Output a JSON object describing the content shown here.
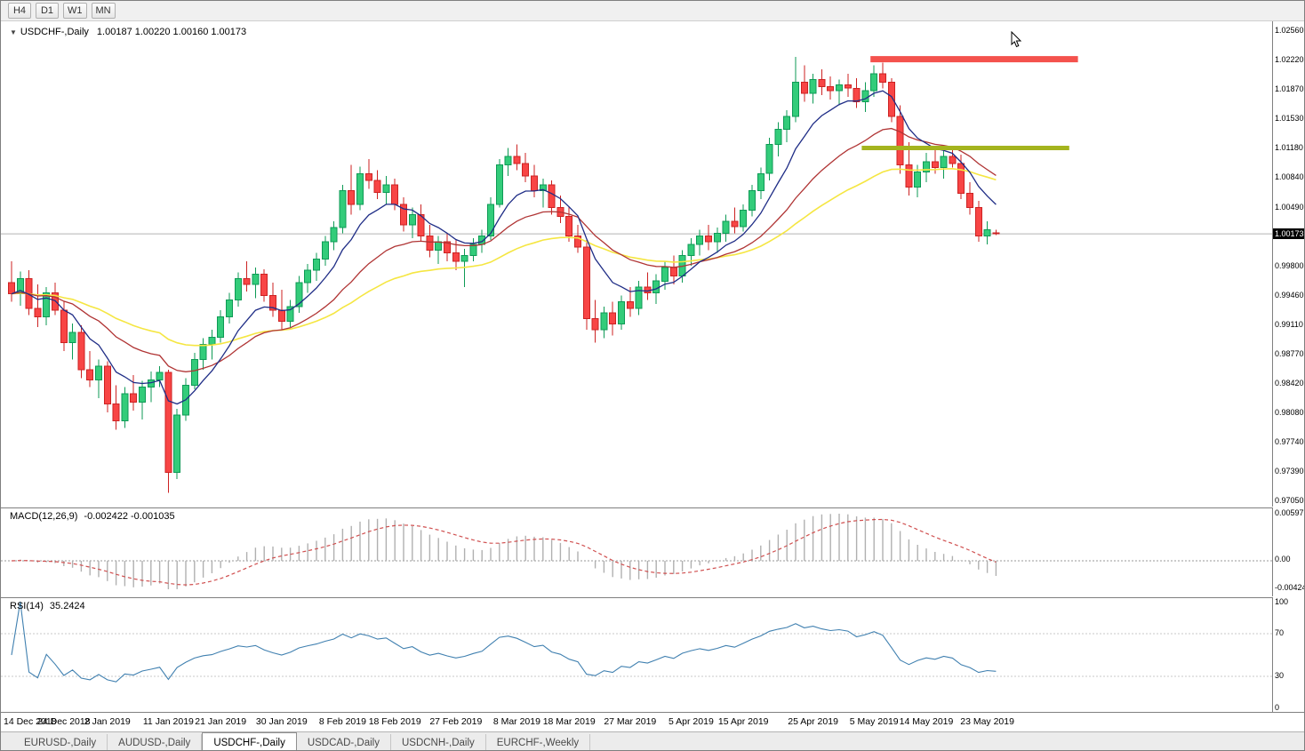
{
  "toolbar": {
    "timeframes": [
      "H4",
      "D1",
      "W1",
      "MN"
    ]
  },
  "chart_header": {
    "collapse_icon": "▼",
    "symbol": "USDCHF-,Daily",
    "ohlc": "1.00187 1.00220 1.00160 1.00173"
  },
  "price_axis": {
    "labels": [
      "1.02560",
      "1.02220",
      "1.01870",
      "1.01530",
      "1.01180",
      "1.00840",
      "1.00490",
      "0.99800",
      "0.99460",
      "0.99110",
      "0.98770",
      "0.98420",
      "0.98080",
      "0.97740",
      "0.97390",
      "0.97050"
    ],
    "current_price": "1.00173"
  },
  "macd_panel": {
    "label": "MACD(12,26,9)",
    "values": "-0.002422 -0.001035",
    "axis_labels": [
      "0.00597",
      "0.00",
      "-0.004243"
    ]
  },
  "rsi_panel": {
    "label": "RSI(14)",
    "value": "35.2424",
    "axis_labels": [
      "100",
      "70",
      "30",
      "0"
    ]
  },
  "time_axis": {
    "labels": [
      {
        "text": "14 Dec 2018",
        "index": 0
      },
      {
        "text": "24 Dec 2018",
        "index": 6
      },
      {
        "text": "2 Jan 2019",
        "index": 11
      },
      {
        "text": "11 Jan 2019",
        "index": 18
      },
      {
        "text": "21 Jan 2019",
        "index": 24
      },
      {
        "text": "30 Jan 2019",
        "index": 31
      },
      {
        "text": "8 Feb 2019",
        "index": 38
      },
      {
        "text": "18 Feb 2019",
        "index": 44
      },
      {
        "text": "27 Feb 2019",
        "index": 51
      },
      {
        "text": "8 Mar 2019",
        "index": 58
      },
      {
        "text": "18 Mar 2019",
        "index": 64
      },
      {
        "text": "27 Mar 2019",
        "index": 71
      },
      {
        "text": "5 Apr 2019",
        "index": 78
      },
      {
        "text": "15 Apr 2019",
        "index": 84
      },
      {
        "text": "25 Apr 2019",
        "index": 92
      },
      {
        "text": "5 May 2019",
        "index": 99
      },
      {
        "text": "14 May 2019",
        "index": 105
      },
      {
        "text": "23 May 2019",
        "index": 112
      }
    ]
  },
  "tabs": [
    {
      "label": "EURUSD-,Daily",
      "active": false
    },
    {
      "label": "AUDUSD-,Daily",
      "active": false
    },
    {
      "label": "USDCHF-,Daily",
      "active": true
    },
    {
      "label": "USDCAD-,Daily",
      "active": false
    },
    {
      "label": "USDCNH-,Daily",
      "active": false
    },
    {
      "label": "EURCHF-,Weekly",
      "active": false
    }
  ],
  "chart_data": {
    "type": "candlestick",
    "symbol": "USDCHF-",
    "timeframe": "Daily",
    "ylim": [
      0.9705,
      1.0256
    ],
    "current_price": 1.00173,
    "last_candle": {
      "open": 1.00187,
      "high": 1.0022,
      "low": 1.0016,
      "close": 1.00173
    },
    "colors": {
      "bull": "#33cc7a",
      "bull_border": "#0e9a55",
      "bear": "#f84545",
      "bear_border": "#cc2222",
      "price_line": "#b3b3b3",
      "background": "#ffffff"
    },
    "candles": {
      "dates": [
        "2018-12-14",
        "2018-12-17",
        "2018-12-18",
        "2018-12-19",
        "2018-12-20",
        "2018-12-21",
        "2018-12-24",
        "2018-12-26",
        "2018-12-27",
        "2018-12-28",
        "2018-12-31",
        "2019-01-02",
        "2019-01-03",
        "2019-01-04",
        "2019-01-07",
        "2019-01-08",
        "2019-01-09",
        "2019-01-10",
        "2019-01-11",
        "2019-01-14",
        "2019-01-15",
        "2019-01-16",
        "2019-01-17",
        "2019-01-18",
        "2019-01-21",
        "2019-01-22",
        "2019-01-23",
        "2019-01-24",
        "2019-01-25",
        "2019-01-28",
        "2019-01-29",
        "2019-01-30",
        "2019-01-31",
        "2019-02-01",
        "2019-02-04",
        "2019-02-05",
        "2019-02-06",
        "2019-02-07",
        "2019-02-08",
        "2019-02-11",
        "2019-02-12",
        "2019-02-13",
        "2019-02-14",
        "2019-02-15",
        "2019-02-18",
        "2019-02-19",
        "2019-02-20",
        "2019-02-21",
        "2019-02-22",
        "2019-02-25",
        "2019-02-26",
        "2019-02-27",
        "2019-02-28",
        "2019-03-01",
        "2019-03-04",
        "2019-03-05",
        "2019-03-06",
        "2019-03-07",
        "2019-03-08",
        "2019-03-11",
        "2019-03-12",
        "2019-03-13",
        "2019-03-14",
        "2019-03-15",
        "2019-03-18",
        "2019-03-19",
        "2019-03-20",
        "2019-03-21",
        "2019-03-22",
        "2019-03-25",
        "2019-03-26",
        "2019-03-27",
        "2019-03-28",
        "2019-03-29",
        "2019-04-01",
        "2019-04-02",
        "2019-04-03",
        "2019-04-04",
        "2019-04-05",
        "2019-04-08",
        "2019-04-09",
        "2019-04-10",
        "2019-04-11",
        "2019-04-12",
        "2019-04-15",
        "2019-04-16",
        "2019-04-17",
        "2019-04-18",
        "2019-04-19",
        "2019-04-22",
        "2019-04-23",
        "2019-04-24",
        "2019-04-25",
        "2019-04-26",
        "2019-04-29",
        "2019-04-30",
        "2019-05-01",
        "2019-05-02",
        "2019-05-03",
        "2019-05-06",
        "2019-05-07",
        "2019-05-08",
        "2019-05-09",
        "2019-05-10",
        "2019-05-13",
        "2019-05-14",
        "2019-05-15",
        "2019-05-16",
        "2019-05-17",
        "2019-05-20",
        "2019-05-21",
        "2019-05-22",
        "2019-05-23",
        "2019-05-24"
      ],
      "open": [
        0.996,
        0.9947,
        0.9965,
        0.993,
        0.992,
        0.9948,
        0.9928,
        0.989,
        0.9902,
        0.9858,
        0.9846,
        0.9862,
        0.9818,
        0.9798,
        0.983,
        0.982,
        0.9838,
        0.9846,
        0.9855,
        0.9738,
        0.9805,
        0.984,
        0.987,
        0.9888,
        0.9896,
        0.992,
        0.994,
        0.9965,
        0.9958,
        0.997,
        0.9945,
        0.9928,
        0.9915,
        0.9932,
        0.996,
        0.9975,
        0.9988,
        1.0008,
        1.0025,
        1.0068,
        1.0052,
        1.0088,
        1.008,
        1.0066,
        1.0075,
        1.0052,
        1.0028,
        1.004,
        1.0015,
        0.9998,
        1.0008,
        0.9995,
        0.9985,
        0.9992,
        1.0005,
        1.0015,
        1.0052,
        1.0098,
        1.0108,
        1.01,
        1.0085,
        1.0068,
        1.0075,
        1.0048,
        1.0038,
        1.0015,
        1.0002,
        0.9918,
        0.9905,
        0.9925,
        0.9912,
        0.9938,
        0.993,
        0.9955,
        0.9948,
        0.9962,
        0.9978,
        0.9968,
        0.9992,
        1.0005,
        1.0015,
        1.0008,
        1.0018,
        1.0032,
        1.0026,
        1.0045,
        1.0068,
        1.0088,
        1.0122,
        1.014,
        1.0155,
        1.0195,
        1.0182,
        1.0198,
        1.019,
        1.0185,
        1.0192,
        1.0188,
        1.0172,
        1.0185,
        1.0205,
        1.0195,
        1.0155,
        1.0098,
        1.0072,
        1.009,
        1.0102,
        1.0095,
        1.0108,
        1.01,
        1.0065,
        1.0048,
        1.0015,
        1.00187
      ],
      "high": [
        0.9985,
        0.9973,
        0.9975,
        0.9958,
        0.9955,
        0.996,
        0.9938,
        0.9912,
        0.991,
        0.988,
        0.987,
        0.9868,
        0.984,
        0.9838,
        0.9852,
        0.9845,
        0.9856,
        0.9862,
        0.9858,
        0.9812,
        0.9848,
        0.9878,
        0.9895,
        0.9905,
        0.9928,
        0.9948,
        0.9972,
        0.9985,
        0.9978,
        0.9976,
        0.996,
        0.9952,
        0.994,
        0.9968,
        0.9982,
        0.9995,
        1.0015,
        1.0032,
        1.0075,
        1.0098,
        1.0096,
        1.0105,
        1.0092,
        1.0085,
        1.0082,
        1.006,
        1.0048,
        1.0052,
        1.0028,
        1.0015,
        1.0018,
        1.001,
        1.0,
        1.0012,
        1.0022,
        1.006,
        1.0105,
        1.0118,
        1.0122,
        1.0112,
        1.0098,
        1.0082,
        1.008,
        1.0062,
        1.005,
        1.0028,
        1.001,
        0.994,
        0.9932,
        0.9938,
        0.9945,
        0.9955,
        0.9962,
        0.9972,
        0.997,
        0.9985,
        0.9992,
        0.9998,
        1.0012,
        1.0022,
        1.0028,
        1.0025,
        1.004,
        1.0048,
        1.0052,
        1.0075,
        1.0095,
        1.013,
        1.0148,
        1.0162,
        1.0225,
        1.0215,
        1.0205,
        1.021,
        1.0202,
        1.0198,
        1.0205,
        1.02,
        1.0195,
        1.0215,
        1.0218,
        1.02,
        1.0168,
        1.0125,
        1.0098,
        1.0112,
        1.0118,
        1.0115,
        1.012,
        1.011,
        1.0078,
        1.0056,
        1.0032,
        1.0022
      ],
      "low": [
        0.9938,
        0.9933,
        0.9922,
        0.9908,
        0.991,
        0.9922,
        0.988,
        0.987,
        0.9848,
        0.9838,
        0.9825,
        0.9808,
        0.9788,
        0.979,
        0.981,
        0.98,
        0.982,
        0.9838,
        0.9714,
        0.973,
        0.9798,
        0.9835,
        0.9858,
        0.987,
        0.989,
        0.9912,
        0.9932,
        0.995,
        0.9942,
        0.9938,
        0.992,
        0.9905,
        0.9908,
        0.9925,
        0.9948,
        0.9962,
        0.998,
        0.9998,
        1.0018,
        1.004,
        1.0045,
        1.007,
        1.0058,
        1.0052,
        1.0045,
        1.002,
        1.0012,
        1.0008,
        0.999,
        0.9982,
        0.9985,
        0.9975,
        0.9955,
        0.9985,
        0.9995,
        1.001,
        1.0048,
        1.0085,
        1.0092,
        1.0078,
        1.006,
        1.0048,
        1.004,
        1.003,
        1.0008,
        0.9995,
        0.9905,
        0.989,
        0.9895,
        0.9898,
        0.9905,
        0.992,
        0.9922,
        0.994,
        0.9935,
        0.9952,
        0.9958,
        0.996,
        0.998,
        0.9992,
        0.9998,
        0.9995,
        1.0008,
        1.0018,
        1.002,
        1.0038,
        1.0058,
        1.008,
        1.0108,
        1.0125,
        1.0148,
        1.0172,
        1.017,
        1.018,
        1.0175,
        1.0168,
        1.0178,
        1.0165,
        1.016,
        1.0178,
        1.0188,
        1.0148,
        1.0088,
        1.0062,
        1.006,
        1.0078,
        1.0088,
        1.0082,
        1.0095,
        1.0058,
        1.004,
        1.0008,
        1.0005,
        1.0016
      ],
      "close": [
        0.9947,
        0.9965,
        0.993,
        0.992,
        0.9948,
        0.9928,
        0.989,
        0.9902,
        0.9858,
        0.9846,
        0.9862,
        0.9818,
        0.9798,
        0.983,
        0.982,
        0.9838,
        0.9846,
        0.9855,
        0.9738,
        0.9805,
        0.984,
        0.987,
        0.9888,
        0.9896,
        0.992,
        0.994,
        0.9965,
        0.9958,
        0.997,
        0.9945,
        0.9928,
        0.9915,
        0.9932,
        0.996,
        0.9975,
        0.9988,
        1.0008,
        1.0025,
        1.0068,
        1.0052,
        1.0088,
        1.008,
        1.0066,
        1.0075,
        1.0052,
        1.0028,
        1.004,
        1.0015,
        0.9998,
        1.0008,
        0.9995,
        0.9985,
        0.9992,
        1.0005,
        1.0015,
        1.0052,
        1.0098,
        1.0108,
        1.01,
        1.0085,
        1.0068,
        1.0075,
        1.0048,
        1.0038,
        1.0015,
        1.0002,
        0.9918,
        0.9905,
        0.9925,
        0.9912,
        0.9938,
        0.993,
        0.9955,
        0.9948,
        0.9962,
        0.9978,
        0.9968,
        0.9992,
        1.0005,
        1.0015,
        1.0008,
        1.0018,
        1.0032,
        1.0026,
        1.0045,
        1.0068,
        1.0088,
        1.0122,
        1.014,
        1.0155,
        1.0195,
        1.0182,
        1.0198,
        1.019,
        1.0185,
        1.0192,
        1.0188,
        1.0172,
        1.0185,
        1.0205,
        1.0195,
        1.0155,
        1.0098,
        1.0072,
        1.009,
        1.0102,
        1.0095,
        1.0108,
        1.01,
        1.0065,
        1.0048,
        1.0015,
        1.0022,
        1.00173
      ]
    },
    "moving_averages": [
      {
        "name": "slow-ma",
        "type": "ema",
        "period": 42,
        "color": "#f5e642",
        "width": 1.6
      },
      {
        "name": "medium-ma",
        "type": "ema",
        "period": 21,
        "color": "#b03434",
        "width": 1.3
      },
      {
        "name": "fast-ma",
        "type": "ema",
        "period": 8,
        "color": "#1f2d86",
        "width": 1.3
      }
    ],
    "overlays": [
      {
        "type": "resistance-band",
        "price": 1.0222,
        "from_index": 99,
        "to_index": 122,
        "color": "#f4524d",
        "thickness": 7
      },
      {
        "type": "support-band",
        "price": 1.0118,
        "from_index": 98,
        "to_index": 121,
        "color": "#a4b41e",
        "thickness": 5
      }
    ],
    "indicators": {
      "macd": {
        "fast": 12,
        "slow": 26,
        "signal": 9,
        "main_value": -0.002422,
        "signal_value": -0.001035,
        "axis_values": [
          0.00597,
          0,
          -0.004243
        ],
        "histogram_color": "#b0b0b0",
        "signal_color": "#d05050"
      },
      "rsi": {
        "period": 14,
        "value": 35.2424,
        "levels": [
          70,
          30
        ],
        "axis_values": [
          100,
          70,
          30,
          0
        ],
        "color": "#4080b0"
      }
    }
  }
}
